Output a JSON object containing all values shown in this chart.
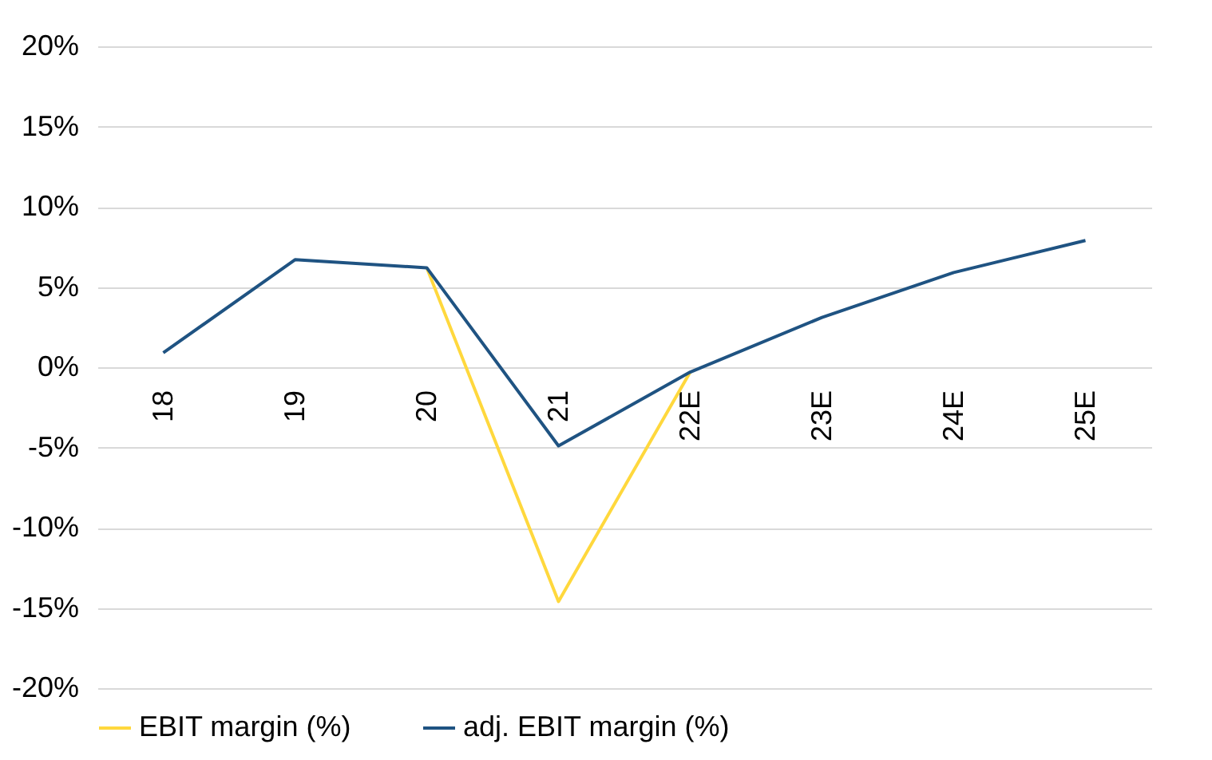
{
  "chart_data": {
    "type": "line",
    "categories": [
      "18",
      "19",
      "20",
      "21",
      "22E",
      "23E",
      "24E",
      "25E"
    ],
    "series": [
      {
        "name": "EBIT margin (%)",
        "color": "#ffd83d",
        "values": [
          null,
          null,
          6.2,
          -14.6,
          -0.3,
          null,
          null,
          null
        ]
      },
      {
        "name": "adj. EBIT margin (%)",
        "color": "#1f5382",
        "values": [
          0.9,
          6.7,
          6.2,
          -4.9,
          -0.3,
          3.1,
          5.9,
          7.9
        ]
      }
    ],
    "ylim": [
      -20,
      20
    ],
    "yticks": [
      {
        "value": -20,
        "label": "-20%"
      },
      {
        "value": -15,
        "label": "-15%"
      },
      {
        "value": -10,
        "label": "-10%"
      },
      {
        "value": -5,
        "label": "-5%"
      },
      {
        "value": 0,
        "label": "0%"
      },
      {
        "value": 5,
        "label": "5%"
      },
      {
        "value": 10,
        "label": "10%"
      },
      {
        "value": 15,
        "label": "15%"
      },
      {
        "value": 20,
        "label": "20%"
      }
    ],
    "grid": "y",
    "legend": "bottom",
    "marker": "none",
    "line_style": "solid"
  }
}
